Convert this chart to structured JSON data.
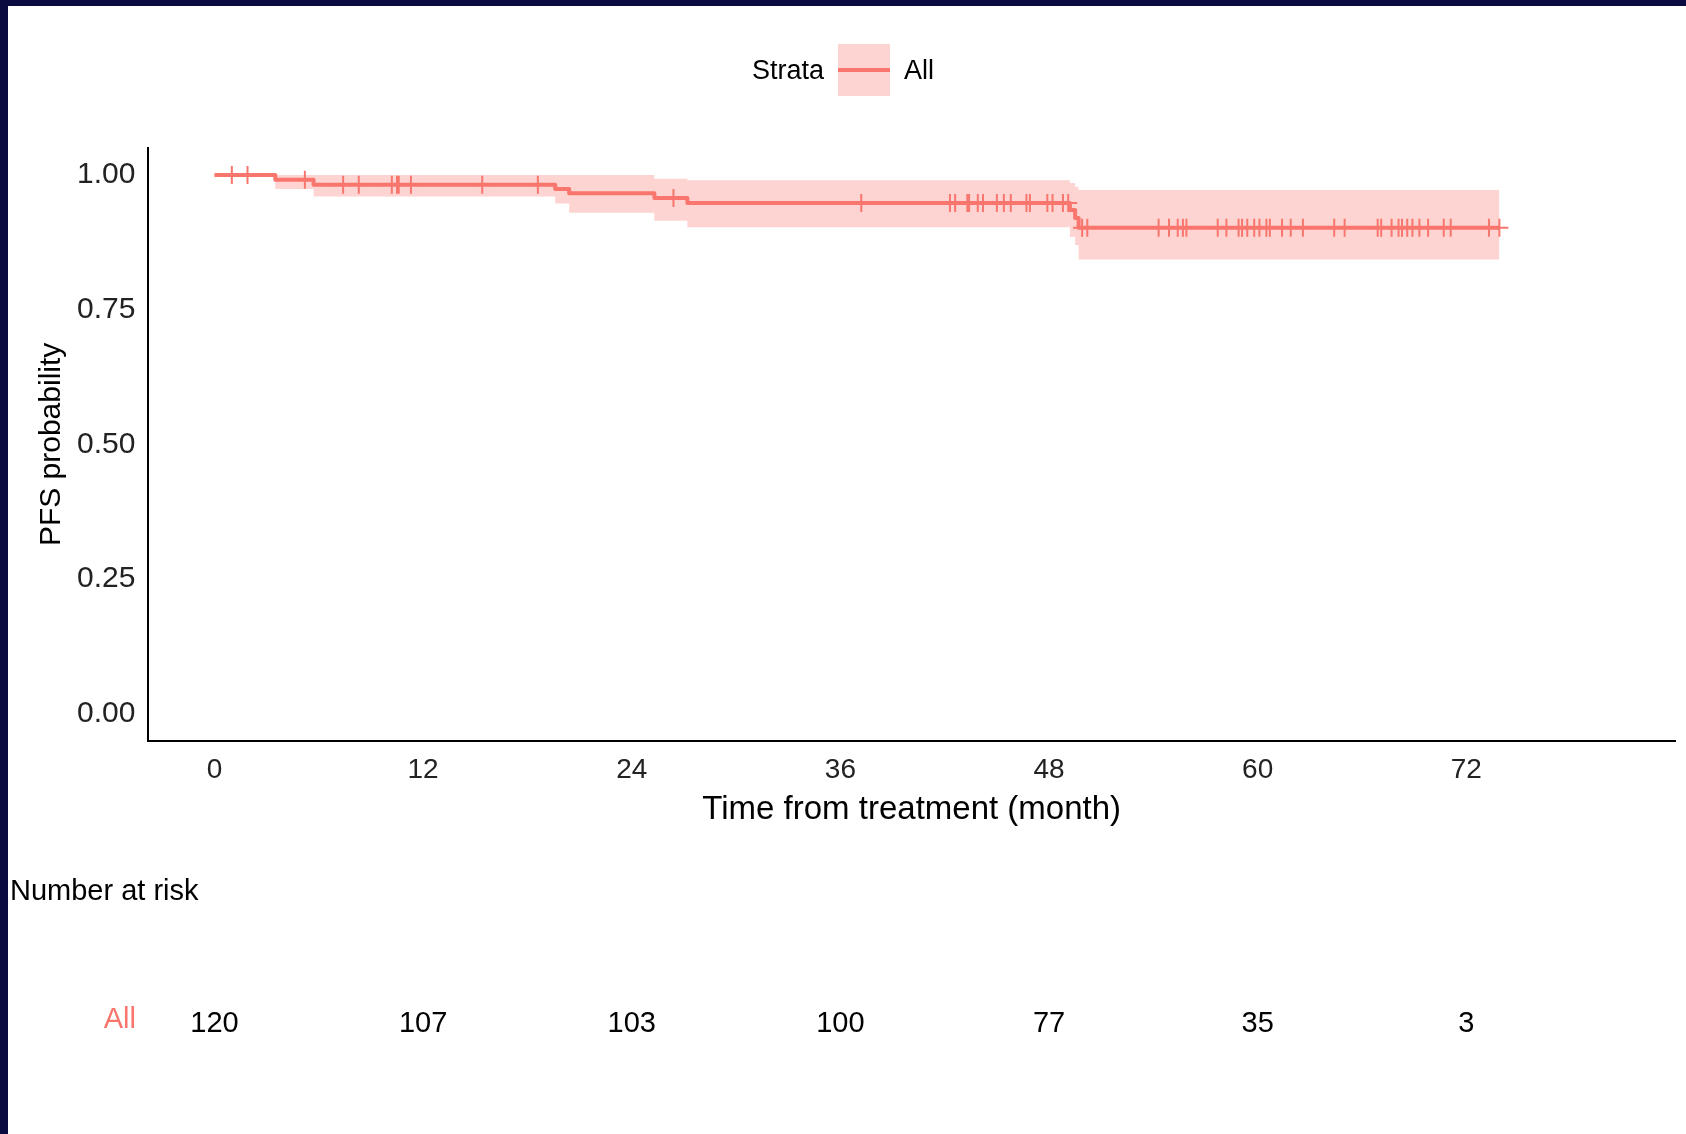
{
  "chart_data": {
    "type": "step",
    "xlabel": "Time from treatment (month)",
    "ylabel": "PFS probability",
    "legend_title": "Strata",
    "legend": "top",
    "grid": false,
    "xlim": [
      -3.8,
      84
    ],
    "xticks": [
      0,
      12,
      24,
      36,
      48,
      60,
      72
    ],
    "ylim": [
      -0.05,
      1.05
    ],
    "yticks": [
      {
        "value": 0,
        "label": "0.00"
      },
      {
        "value": 0.25,
        "label": "0.25"
      },
      {
        "value": 0.5,
        "label": "0.50"
      },
      {
        "value": 0.75,
        "label": "0.75"
      },
      {
        "value": 1,
        "label": "1.00"
      }
    ],
    "series": [
      {
        "name": "All",
        "color": "#f8766d",
        "x": [
          0,
          3.5,
          5.7,
          19.6,
          20.4,
          25.3,
          27.2,
          49.2,
          49.5,
          49.7,
          73.9
        ],
        "values": [
          1,
          0.991,
          0.982,
          0.974,
          0.966,
          0.957,
          0.948,
          0.935,
          0.92,
          0.902,
          0.902
        ],
        "lower": [
          1,
          0.974,
          0.96,
          0.947,
          0.93,
          0.915,
          0.903,
          0.885,
          0.87,
          0.843,
          0.843
        ],
        "upper": [
          1,
          1,
          1,
          1,
          1,
          0.993,
          0.99,
          0.985,
          0.978,
          0.972,
          0.972
        ]
      },
      {
        "type": "scatter",
        "marker": "cross",
        "color": "#f8766d",
        "x": [
          1.0,
          1.9,
          5.2,
          7.4,
          8.3,
          10.2,
          10.5,
          10.6,
          11.3,
          15.4,
          18.6,
          26.4,
          37.2,
          42.3,
          42.6,
          43.3,
          43.4,
          43.9,
          44.2,
          45.0,
          45.4,
          45.8,
          46.7,
          46.9,
          47.9,
          48.2,
          48.8,
          49.1,
          49.9,
          50.2,
          54.3,
          54.9,
          55.4,
          55.7,
          55.9,
          57.7,
          58.2,
          58.9,
          59.1,
          59.4,
          59.8,
          60.1,
          60.5,
          60.7,
          61.4,
          61.9,
          62.6,
          64.4,
          65.0,
          66.9,
          67.1,
          67.7,
          68.1,
          68.3,
          68.6,
          68.9,
          69.3,
          69.8,
          70.7,
          71.1,
          73.3,
          73.9
        ],
        "values": [
          1,
          1,
          0.991,
          0.982,
          0.982,
          0.982,
          0.982,
          0.982,
          0.982,
          0.982,
          0.982,
          0.957,
          0.948,
          0.948,
          0.948,
          0.948,
          0.948,
          0.948,
          0.948,
          0.948,
          0.948,
          0.948,
          0.948,
          0.948,
          0.948,
          0.948,
          0.948,
          0.948,
          0.902,
          0.902,
          0.902,
          0.902,
          0.902,
          0.902,
          0.902,
          0.902,
          0.902,
          0.902,
          0.902,
          0.902,
          0.902,
          0.902,
          0.902,
          0.902,
          0.902,
          0.902,
          0.902,
          0.902,
          0.902,
          0.902,
          0.902,
          0.902,
          0.902,
          0.902,
          0.902,
          0.902,
          0.902,
          0.902,
          0.902,
          0.902,
          0.902,
          0.902
        ]
      }
    ],
    "annotations": [
      "Number at risk",
      "All",
      "120",
      "107",
      "103",
      "100",
      "77",
      "35",
      "3"
    ]
  }
}
